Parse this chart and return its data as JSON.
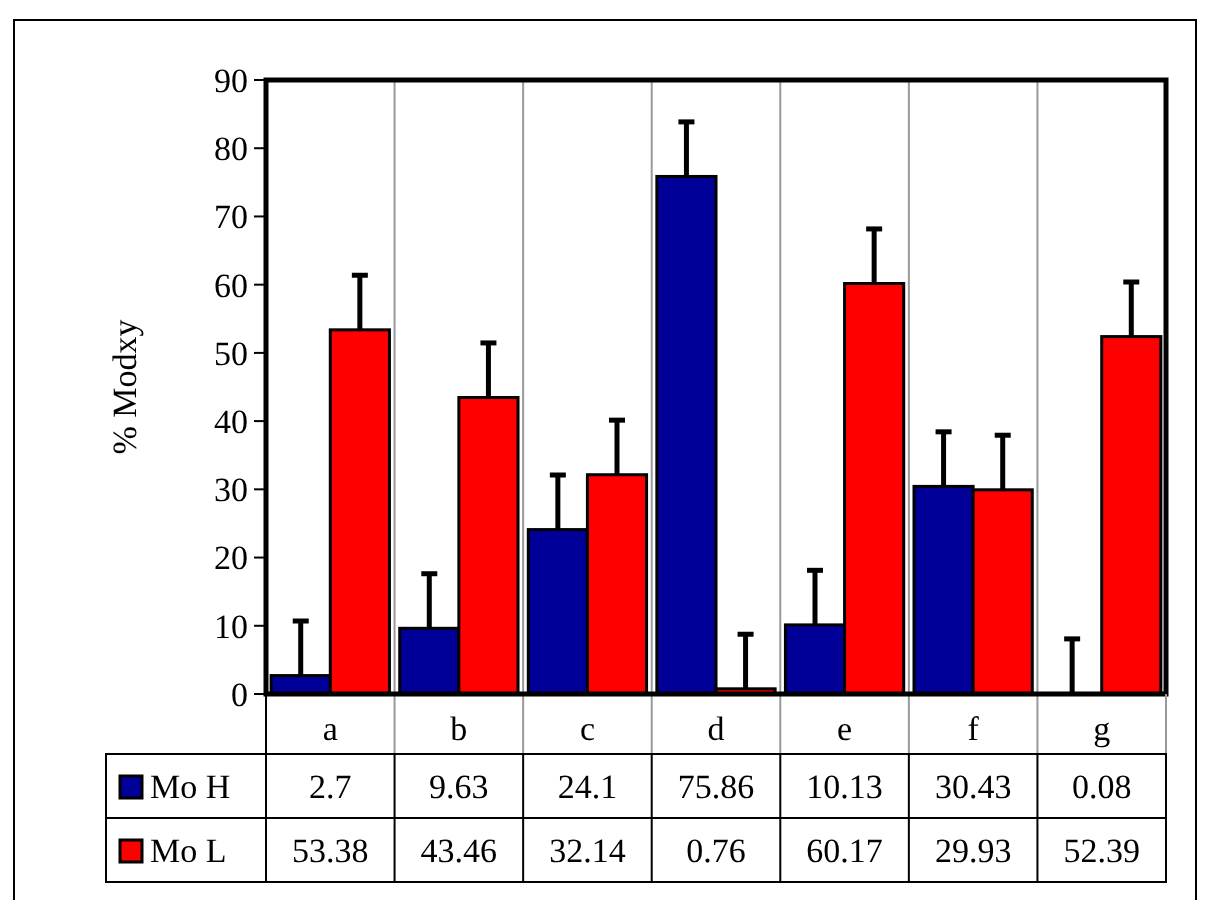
{
  "chart_data": {
    "type": "bar",
    "ylabel": "% Modxy",
    "categories": [
      "a",
      "b",
      "c",
      "d",
      "e",
      "f",
      "g"
    ],
    "series": [
      {
        "name": "Mo H",
        "color": "#000099",
        "values": [
          2.7,
          9.63,
          24.1,
          75.86,
          10.13,
          30.43,
          0.08
        ],
        "errors": [
          [
            2.7,
            10.7
          ],
          [
            9.63,
            17.63
          ],
          [
            24.1,
            32.1
          ],
          [
            75.86,
            83.86
          ],
          [
            10.13,
            18.13
          ],
          [
            30.43,
            38.43
          ],
          [
            0.08,
            8.08
          ]
        ]
      },
      {
        "name": "Mo L",
        "color": "#ff0000",
        "values": [
          53.38,
          43.46,
          32.14,
          0.76,
          60.17,
          29.93,
          52.39
        ],
        "errors": [
          [
            53.38,
            61.38
          ],
          [
            43.46,
            51.46
          ],
          [
            32.14,
            40.14
          ],
          [
            0.76,
            8.76
          ],
          [
            60.17,
            68.17
          ],
          [
            29.93,
            37.93
          ],
          [
            52.39,
            60.39
          ]
        ]
      }
    ],
    "ylim": [
      0,
      90
    ],
    "yticks": [
      0,
      10,
      20,
      30,
      40,
      50,
      60,
      70,
      80,
      90
    ],
    "data_labels": true,
    "legend": "bottom"
  }
}
